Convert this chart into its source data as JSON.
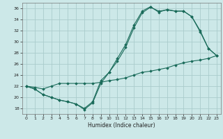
{
  "title": "",
  "xlabel": "Humidex (Indice chaleur)",
  "bg_color": "#cce8e8",
  "grid_color": "#aacccc",
  "line_color": "#1a6b5a",
  "xlim": [
    -0.5,
    23.5
  ],
  "ylim": [
    17,
    37
  ],
  "yticks": [
    18,
    20,
    22,
    24,
    26,
    28,
    30,
    32,
    34,
    36
  ],
  "xticks": [
    0,
    1,
    2,
    3,
    4,
    5,
    6,
    7,
    8,
    9,
    10,
    11,
    12,
    13,
    14,
    15,
    16,
    17,
    18,
    19,
    20,
    21,
    22,
    23
  ],
  "line1_x": [
    0,
    1,
    2,
    3,
    4,
    5,
    6,
    7,
    8,
    9,
    10,
    11,
    12,
    13,
    14,
    15,
    16,
    17,
    18,
    19,
    20,
    21,
    22,
    23
  ],
  "line1_y": [
    22,
    21.5,
    20.5,
    20.0,
    19.5,
    19.2,
    18.8,
    17.8,
    19.0,
    22.5,
    24.5,
    26.5,
    29.0,
    32.5,
    35.2,
    36.2,
    35.5,
    35.7,
    35.5,
    35.5,
    34.5,
    32.0,
    28.8,
    27.5
  ],
  "line2_x": [
    0,
    1,
    2,
    3,
    4,
    5,
    6,
    7,
    8,
    9,
    10,
    11,
    12,
    13,
    14,
    15,
    16,
    17,
    18,
    19,
    20,
    21,
    22,
    23
  ],
  "line2_y": [
    22,
    21.5,
    20.5,
    20.0,
    19.5,
    19.2,
    18.8,
    18.0,
    19.2,
    23.0,
    24.5,
    27.0,
    29.5,
    33.0,
    35.5,
    36.3,
    35.3,
    35.8,
    35.5,
    35.5,
    34.5,
    31.8,
    28.8,
    27.5
  ],
  "line3_x": [
    0,
    1,
    2,
    3,
    4,
    5,
    6,
    7,
    8,
    9,
    10,
    11,
    12,
    13,
    14,
    15,
    16,
    17,
    18,
    19,
    20,
    21,
    22,
    23
  ],
  "line3_y": [
    22,
    21.8,
    21.5,
    22.0,
    22.5,
    22.5,
    22.5,
    22.5,
    22.5,
    22.7,
    23.0,
    23.2,
    23.5,
    24.0,
    24.5,
    24.7,
    25.0,
    25.3,
    25.8,
    26.2,
    26.5,
    26.7,
    27.0,
    27.5
  ]
}
